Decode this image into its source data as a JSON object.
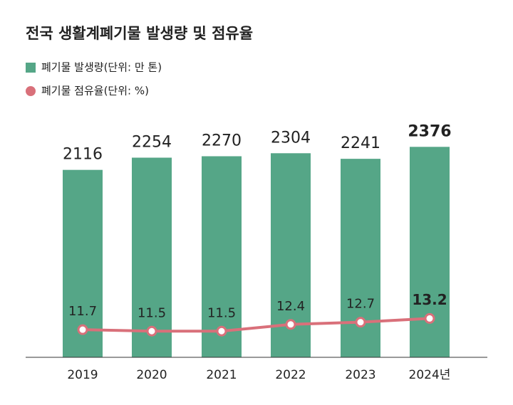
{
  "chart_data": {
    "type": "combo",
    "title": "전국 생활계폐기물 발생량 및 점유율",
    "categories": [
      "2019",
      "2020",
      "2021",
      "2022",
      "2023",
      "2024년"
    ],
    "series": [
      {
        "name": "폐기물 발생량(단위: 만 톤)",
        "type": "bar",
        "color": "#55a687",
        "values": [
          2116,
          2254,
          2270,
          2304,
          2241,
          2376
        ]
      },
      {
        "name": "폐기물 점유율(단위: %)",
        "type": "line",
        "axis": "y2",
        "color": "#d9707a",
        "values": [
          11.7,
          11.5,
          11.5,
          12.4,
          12.7,
          13.2
        ]
      }
    ],
    "ylim": [
      0,
      2700
    ],
    "y2lim": [
      8,
      40
    ],
    "legend": "top-left"
  }
}
